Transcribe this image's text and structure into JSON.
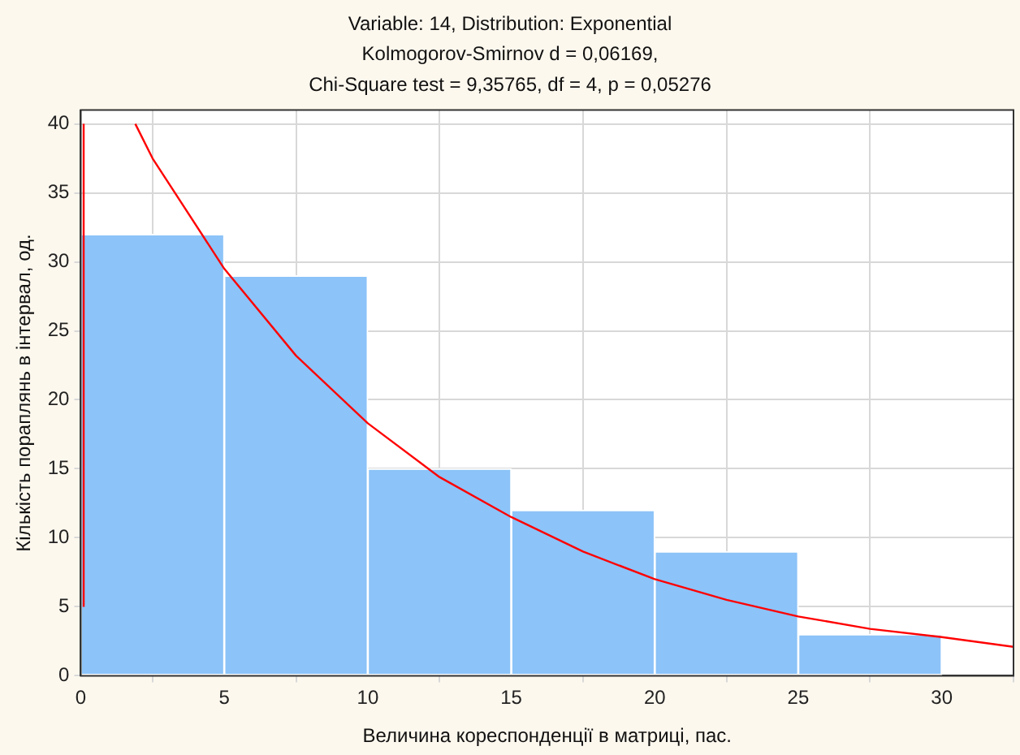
{
  "chart_data": {
    "type": "histogram",
    "title": "Variable: 14, Distribution: Exponential",
    "subtitle": "Kolmogorov-Smirnov d = 0,06169,\nChi-Square test = 9,35765, df = 4, p = 0,05276",
    "xlabel": "Величина кореспонденції в матриці, пас.",
    "ylabel": "Кількість пораплянь в інтервал, од.",
    "bins": [
      0,
      5,
      10,
      15,
      20,
      25,
      30
    ],
    "values": [
      32,
      29,
      15,
      12,
      9,
      3
    ],
    "color": "#8cc3f8",
    "series": [
      {
        "type": "line",
        "color": "#ff0000",
        "x": [
          0.1,
          0.1,
          1,
          1.9,
          2.5,
          5,
          7.5,
          10,
          12.5,
          15,
          17.5,
          20,
          22.5,
          25,
          27.5,
          30,
          32.5
        ],
        "values": [
          5,
          40,
          null,
          40,
          37.5,
          29.5,
          23.2,
          18.3,
          14.4,
          11.5,
          9,
          7,
          5.5,
          4.3,
          3.4,
          2.8,
          2.1
        ]
      }
    ],
    "xlim": [
      0,
      32.5
    ],
    "ylim": [
      0,
      41
    ],
    "xticks": [
      0,
      5,
      10,
      15,
      20,
      25,
      30
    ],
    "yticks": [
      0,
      5,
      10,
      15,
      20,
      25,
      30,
      35,
      40
    ],
    "grid": true,
    "legend": false
  }
}
